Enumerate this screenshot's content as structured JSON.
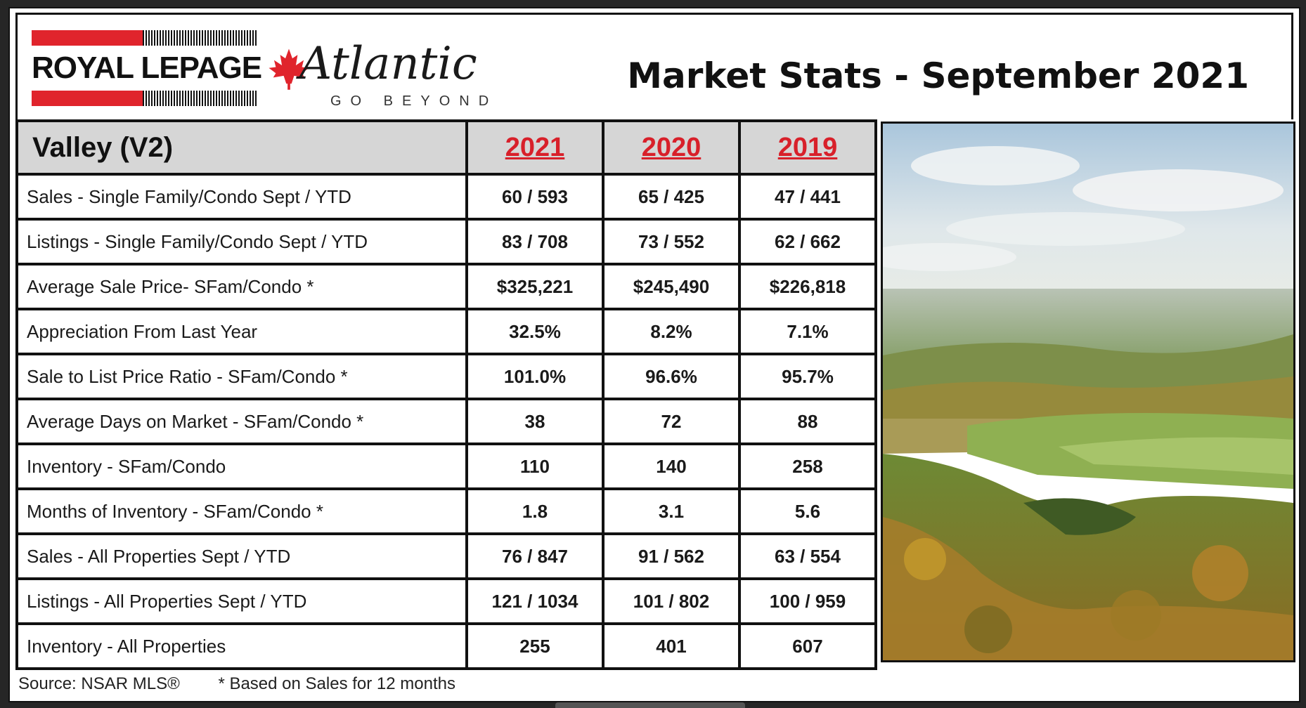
{
  "brand": {
    "royal_lepage": "ROYAL LEPAGE",
    "atlantic": "Atlantic",
    "tagline": "GO BEYOND"
  },
  "header": {
    "title": "Market Stats - September 2021"
  },
  "table": {
    "region": "Valley (V2)",
    "years": [
      "2021",
      "2020",
      "2019"
    ],
    "rows": [
      {
        "label": "Sales - Single Family/Condo Sept / YTD",
        "values": [
          "60 / 593",
          "65 / 425",
          "47 / 441"
        ]
      },
      {
        "label": "Listings - Single Family/Condo Sept / YTD",
        "values": [
          "83 / 708",
          "73 / 552",
          "62 / 662"
        ]
      },
      {
        "label": "Average Sale Price- SFam/Condo *",
        "values": [
          "$325,221",
          "$245,490",
          "$226,818"
        ]
      },
      {
        "label": "Appreciation From Last Year",
        "values": [
          "32.5%",
          "8.2%",
          "7.1%"
        ]
      },
      {
        "label": "Sale to List Price Ratio - SFam/Condo *",
        "values": [
          "101.0%",
          "96.6%",
          "95.7%"
        ]
      },
      {
        "label": "Average Days on Market - SFam/Condo *",
        "values": [
          "38",
          "72",
          "88"
        ]
      },
      {
        "label": "Inventory - SFam/Condo",
        "values": [
          "110",
          "140",
          "258"
        ]
      },
      {
        "label": "Months of Inventory - SFam/Condo *",
        "values": [
          "1.8",
          "3.1",
          "5.6"
        ]
      },
      {
        "label": "Sales - All Properties Sept / YTD",
        "values": [
          "76 / 847",
          "91 / 562",
          "63 / 554"
        ]
      },
      {
        "label": "Listings - All Properties Sept / YTD",
        "values": [
          "121 / 1034",
          "101 / 802",
          "100 / 959"
        ]
      },
      {
        "label": "Inventory - All Properties",
        "values": [
          "255",
          "401",
          "607"
        ]
      }
    ]
  },
  "footer": {
    "source": "Source: NSAR MLS®",
    "note": "* Based on Sales for 12 months"
  },
  "colors": {
    "brand_red": "#e0242c",
    "year_red": "#d8202a",
    "header_gray": "#d6d6d6"
  },
  "images": {
    "photo": "valley landscape photograph"
  }
}
